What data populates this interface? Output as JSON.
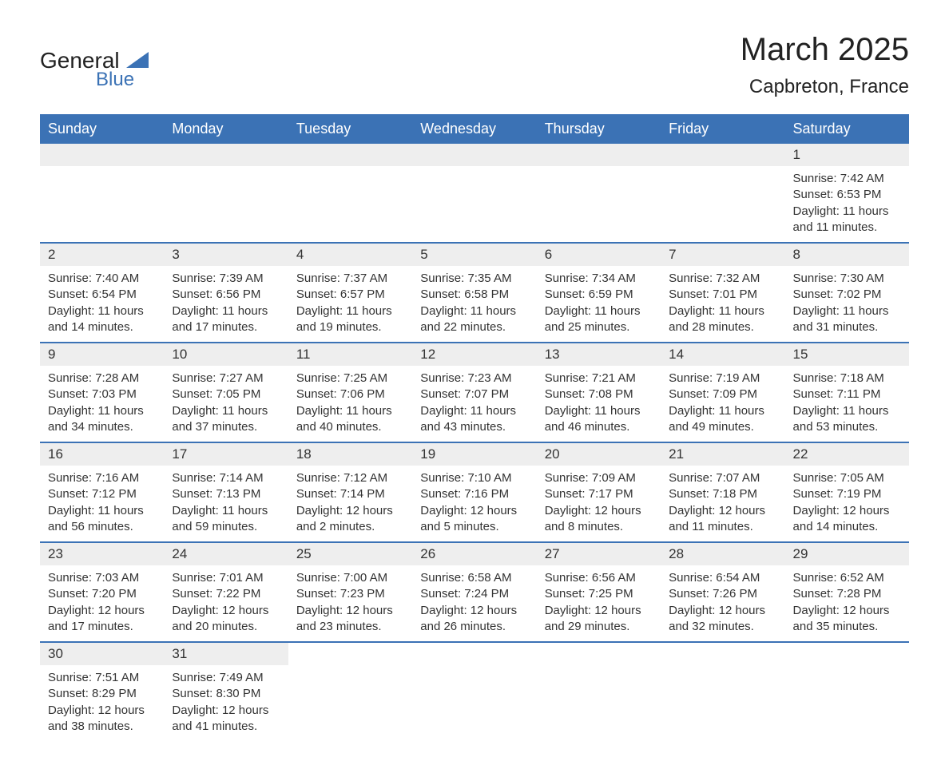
{
  "logo": {
    "text1": "General",
    "text2": "Blue",
    "color_general": "#222222",
    "color_blue": "#3b72b5",
    "shape_color": "#3b72b5"
  },
  "header": {
    "title": "March 2025",
    "location": "Capbreton, France"
  },
  "styling": {
    "header_bg": "#3b72b5",
    "header_text": "#ffffff",
    "daynum_bg": "#eeeeee",
    "row_border": "#3b72b5",
    "body_text": "#333333",
    "page_bg": "#ffffff"
  },
  "day_headers": [
    "Sunday",
    "Monday",
    "Tuesday",
    "Wednesday",
    "Thursday",
    "Friday",
    "Saturday"
  ],
  "weeks": [
    [
      {
        "day": "",
        "sunrise": "",
        "sunset": "",
        "daylight1": "",
        "daylight2": ""
      },
      {
        "day": "",
        "sunrise": "",
        "sunset": "",
        "daylight1": "",
        "daylight2": ""
      },
      {
        "day": "",
        "sunrise": "",
        "sunset": "",
        "daylight1": "",
        "daylight2": ""
      },
      {
        "day": "",
        "sunrise": "",
        "sunset": "",
        "daylight1": "",
        "daylight2": ""
      },
      {
        "day": "",
        "sunrise": "",
        "sunset": "",
        "daylight1": "",
        "daylight2": ""
      },
      {
        "day": "",
        "sunrise": "",
        "sunset": "",
        "daylight1": "",
        "daylight2": ""
      },
      {
        "day": "1",
        "sunrise": "Sunrise: 7:42 AM",
        "sunset": "Sunset: 6:53 PM",
        "daylight1": "Daylight: 11 hours",
        "daylight2": "and 11 minutes."
      }
    ],
    [
      {
        "day": "2",
        "sunrise": "Sunrise: 7:40 AM",
        "sunset": "Sunset: 6:54 PM",
        "daylight1": "Daylight: 11 hours",
        "daylight2": "and 14 minutes."
      },
      {
        "day": "3",
        "sunrise": "Sunrise: 7:39 AM",
        "sunset": "Sunset: 6:56 PM",
        "daylight1": "Daylight: 11 hours",
        "daylight2": "and 17 minutes."
      },
      {
        "day": "4",
        "sunrise": "Sunrise: 7:37 AM",
        "sunset": "Sunset: 6:57 PM",
        "daylight1": "Daylight: 11 hours",
        "daylight2": "and 19 minutes."
      },
      {
        "day": "5",
        "sunrise": "Sunrise: 7:35 AM",
        "sunset": "Sunset: 6:58 PM",
        "daylight1": "Daylight: 11 hours",
        "daylight2": "and 22 minutes."
      },
      {
        "day": "6",
        "sunrise": "Sunrise: 7:34 AM",
        "sunset": "Sunset: 6:59 PM",
        "daylight1": "Daylight: 11 hours",
        "daylight2": "and 25 minutes."
      },
      {
        "day": "7",
        "sunrise": "Sunrise: 7:32 AM",
        "sunset": "Sunset: 7:01 PM",
        "daylight1": "Daylight: 11 hours",
        "daylight2": "and 28 minutes."
      },
      {
        "day": "8",
        "sunrise": "Sunrise: 7:30 AM",
        "sunset": "Sunset: 7:02 PM",
        "daylight1": "Daylight: 11 hours",
        "daylight2": "and 31 minutes."
      }
    ],
    [
      {
        "day": "9",
        "sunrise": "Sunrise: 7:28 AM",
        "sunset": "Sunset: 7:03 PM",
        "daylight1": "Daylight: 11 hours",
        "daylight2": "and 34 minutes."
      },
      {
        "day": "10",
        "sunrise": "Sunrise: 7:27 AM",
        "sunset": "Sunset: 7:05 PM",
        "daylight1": "Daylight: 11 hours",
        "daylight2": "and 37 minutes."
      },
      {
        "day": "11",
        "sunrise": "Sunrise: 7:25 AM",
        "sunset": "Sunset: 7:06 PM",
        "daylight1": "Daylight: 11 hours",
        "daylight2": "and 40 minutes."
      },
      {
        "day": "12",
        "sunrise": "Sunrise: 7:23 AM",
        "sunset": "Sunset: 7:07 PM",
        "daylight1": "Daylight: 11 hours",
        "daylight2": "and 43 minutes."
      },
      {
        "day": "13",
        "sunrise": "Sunrise: 7:21 AM",
        "sunset": "Sunset: 7:08 PM",
        "daylight1": "Daylight: 11 hours",
        "daylight2": "and 46 minutes."
      },
      {
        "day": "14",
        "sunrise": "Sunrise: 7:19 AM",
        "sunset": "Sunset: 7:09 PM",
        "daylight1": "Daylight: 11 hours",
        "daylight2": "and 49 minutes."
      },
      {
        "day": "15",
        "sunrise": "Sunrise: 7:18 AM",
        "sunset": "Sunset: 7:11 PM",
        "daylight1": "Daylight: 11 hours",
        "daylight2": "and 53 minutes."
      }
    ],
    [
      {
        "day": "16",
        "sunrise": "Sunrise: 7:16 AM",
        "sunset": "Sunset: 7:12 PM",
        "daylight1": "Daylight: 11 hours",
        "daylight2": "and 56 minutes."
      },
      {
        "day": "17",
        "sunrise": "Sunrise: 7:14 AM",
        "sunset": "Sunset: 7:13 PM",
        "daylight1": "Daylight: 11 hours",
        "daylight2": "and 59 minutes."
      },
      {
        "day": "18",
        "sunrise": "Sunrise: 7:12 AM",
        "sunset": "Sunset: 7:14 PM",
        "daylight1": "Daylight: 12 hours",
        "daylight2": "and 2 minutes."
      },
      {
        "day": "19",
        "sunrise": "Sunrise: 7:10 AM",
        "sunset": "Sunset: 7:16 PM",
        "daylight1": "Daylight: 12 hours",
        "daylight2": "and 5 minutes."
      },
      {
        "day": "20",
        "sunrise": "Sunrise: 7:09 AM",
        "sunset": "Sunset: 7:17 PM",
        "daylight1": "Daylight: 12 hours",
        "daylight2": "and 8 minutes."
      },
      {
        "day": "21",
        "sunrise": "Sunrise: 7:07 AM",
        "sunset": "Sunset: 7:18 PM",
        "daylight1": "Daylight: 12 hours",
        "daylight2": "and 11 minutes."
      },
      {
        "day": "22",
        "sunrise": "Sunrise: 7:05 AM",
        "sunset": "Sunset: 7:19 PM",
        "daylight1": "Daylight: 12 hours",
        "daylight2": "and 14 minutes."
      }
    ],
    [
      {
        "day": "23",
        "sunrise": "Sunrise: 7:03 AM",
        "sunset": "Sunset: 7:20 PM",
        "daylight1": "Daylight: 12 hours",
        "daylight2": "and 17 minutes."
      },
      {
        "day": "24",
        "sunrise": "Sunrise: 7:01 AM",
        "sunset": "Sunset: 7:22 PM",
        "daylight1": "Daylight: 12 hours",
        "daylight2": "and 20 minutes."
      },
      {
        "day": "25",
        "sunrise": "Sunrise: 7:00 AM",
        "sunset": "Sunset: 7:23 PM",
        "daylight1": "Daylight: 12 hours",
        "daylight2": "and 23 minutes."
      },
      {
        "day": "26",
        "sunrise": "Sunrise: 6:58 AM",
        "sunset": "Sunset: 7:24 PM",
        "daylight1": "Daylight: 12 hours",
        "daylight2": "and 26 minutes."
      },
      {
        "day": "27",
        "sunrise": "Sunrise: 6:56 AM",
        "sunset": "Sunset: 7:25 PM",
        "daylight1": "Daylight: 12 hours",
        "daylight2": "and 29 minutes."
      },
      {
        "day": "28",
        "sunrise": "Sunrise: 6:54 AM",
        "sunset": "Sunset: 7:26 PM",
        "daylight1": "Daylight: 12 hours",
        "daylight2": "and 32 minutes."
      },
      {
        "day": "29",
        "sunrise": "Sunrise: 6:52 AM",
        "sunset": "Sunset: 7:28 PM",
        "daylight1": "Daylight: 12 hours",
        "daylight2": "and 35 minutes."
      }
    ],
    [
      {
        "day": "30",
        "sunrise": "Sunrise: 7:51 AM",
        "sunset": "Sunset: 8:29 PM",
        "daylight1": "Daylight: 12 hours",
        "daylight2": "and 38 minutes."
      },
      {
        "day": "31",
        "sunrise": "Sunrise: 7:49 AM",
        "sunset": "Sunset: 8:30 PM",
        "daylight1": "Daylight: 12 hours",
        "daylight2": "and 41 minutes."
      },
      {
        "day": "",
        "sunrise": "",
        "sunset": "",
        "daylight1": "",
        "daylight2": ""
      },
      {
        "day": "",
        "sunrise": "",
        "sunset": "",
        "daylight1": "",
        "daylight2": ""
      },
      {
        "day": "",
        "sunrise": "",
        "sunset": "",
        "daylight1": "",
        "daylight2": ""
      },
      {
        "day": "",
        "sunrise": "",
        "sunset": "",
        "daylight1": "",
        "daylight2": ""
      },
      {
        "day": "",
        "sunrise": "",
        "sunset": "",
        "daylight1": "",
        "daylight2": ""
      }
    ]
  ]
}
